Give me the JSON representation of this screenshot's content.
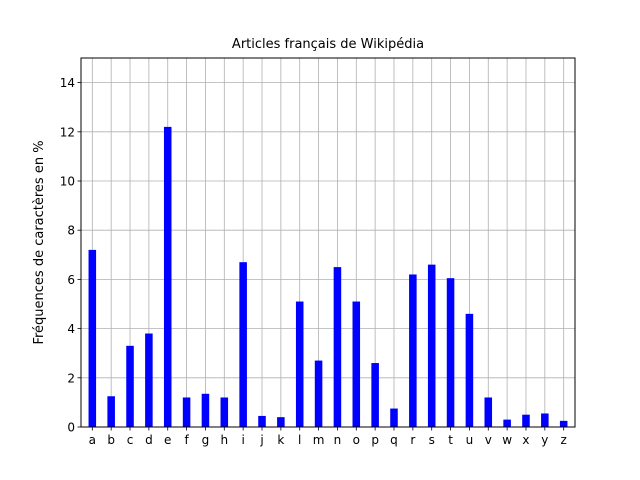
{
  "chart_data": {
    "type": "bar",
    "title": "Articles français de Wikipédia",
    "xlabel": "",
    "ylabel": "Fréquences de caractères en %",
    "ylim": [
      0,
      15
    ],
    "yticks": [
      0,
      2,
      4,
      6,
      8,
      10,
      12,
      14
    ],
    "grid": true,
    "bar_color": "#0000ff",
    "categories": [
      "a",
      "b",
      "c",
      "d",
      "e",
      "f",
      "g",
      "h",
      "i",
      "j",
      "k",
      "l",
      "m",
      "n",
      "o",
      "p",
      "q",
      "r",
      "s",
      "t",
      "u",
      "v",
      "w",
      "x",
      "y",
      "z"
    ],
    "values": [
      7.2,
      1.25,
      3.3,
      3.8,
      12.2,
      1.2,
      1.35,
      1.2,
      6.7,
      0.45,
      0.4,
      5.1,
      2.7,
      6.5,
      5.1,
      2.6,
      0.75,
      6.2,
      6.6,
      6.05,
      4.6,
      1.2,
      0.3,
      0.5,
      0.55,
      0.25
    ]
  }
}
